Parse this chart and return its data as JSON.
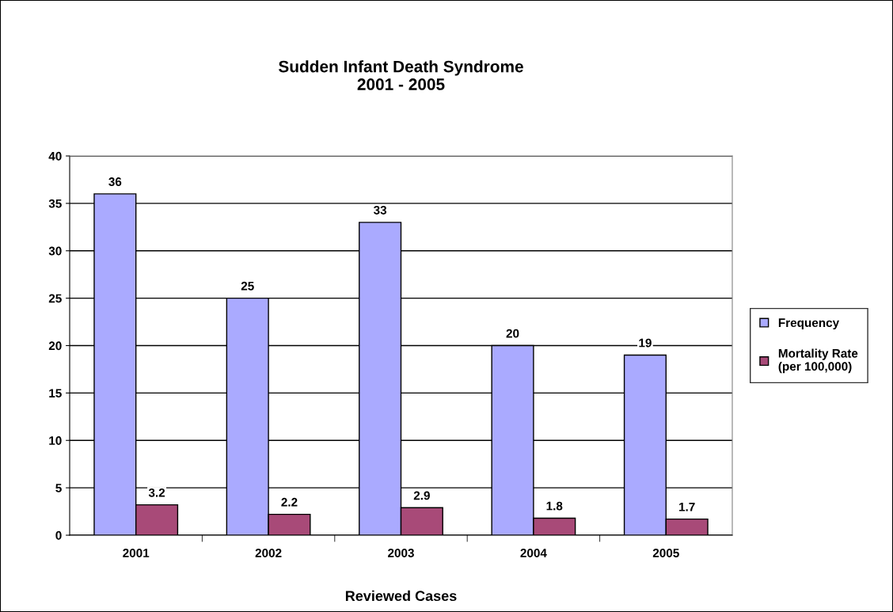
{
  "chart_data": {
    "type": "bar",
    "title": "Sudden Infant Death Syndrome\n2001 - 2005",
    "xlabel": "Reviewed Cases",
    "categories": [
      "2001",
      "2002",
      "2003",
      "2004",
      "2005"
    ],
    "series": [
      {
        "name": "Frequency",
        "color": "#aaaaff",
        "values": [
          36,
          25,
          33,
          20,
          19
        ]
      },
      {
        "name": "Mortality Rate\n(per 100,000)",
        "color": "#a84a78",
        "values": [
          3.2,
          2.2,
          2.9,
          1.8,
          1.7
        ]
      }
    ],
    "ylim": [
      0,
      40
    ],
    "yticks": [
      0,
      5,
      10,
      15,
      20,
      25,
      30,
      35,
      40
    ],
    "grid": "y",
    "legend": "right",
    "data_labels": true
  }
}
